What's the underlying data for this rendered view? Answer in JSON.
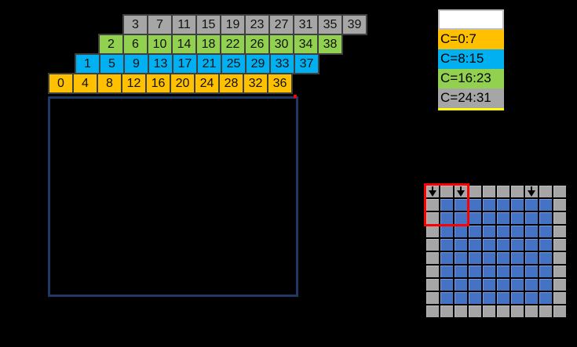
{
  "background_color": "#000000",
  "stagger_rows": [
    {
      "name": "row-c24-31",
      "color": "#A6A6A6",
      "values": [
        3,
        7,
        11,
        15,
        19,
        23,
        27,
        31,
        35,
        39
      ]
    },
    {
      "name": "row-c16-23",
      "color": "#92D050",
      "values": [
        2,
        6,
        10,
        14,
        18,
        22,
        26,
        30,
        34,
        38
      ]
    },
    {
      "name": "row-c8-15",
      "color": "#00B0F0",
      "values": [
        1,
        5,
        9,
        13,
        17,
        21,
        25,
        29,
        33,
        37
      ]
    },
    {
      "name": "row-c0-7",
      "color": "#FFC000",
      "values": [
        0,
        4,
        8,
        12,
        16,
        20,
        24,
        28,
        32,
        36
      ]
    }
  ],
  "main_rect": {
    "border_color": "#1F3864",
    "corner_marker_color": "#FF0000"
  },
  "legend": {
    "items": [
      {
        "label": "",
        "color": "#FFFFFF",
        "border_color": "#BFBFBF"
      },
      {
        "label": "C=0:7",
        "color": "#FFC000"
      },
      {
        "label": "C=8:15",
        "color": "#00B0F0"
      },
      {
        "label": "C=16:23",
        "color": "#92D050"
      },
      {
        "label": "C=24:31",
        "color": "#A6A6A6",
        "underline_color": "#FFFF00"
      }
    ]
  },
  "halo_grid": {
    "rows": 10,
    "cols": 10,
    "border_cell_color": "#A6A6A6",
    "inner_cell_color": "#4472C4",
    "highlight": {
      "row": 0,
      "col": 0,
      "span_rows": 3,
      "span_cols": 3,
      "color": "#FF0000"
    },
    "arrow_cols": [
      0,
      2,
      7
    ],
    "arrow_color": "#000000"
  }
}
